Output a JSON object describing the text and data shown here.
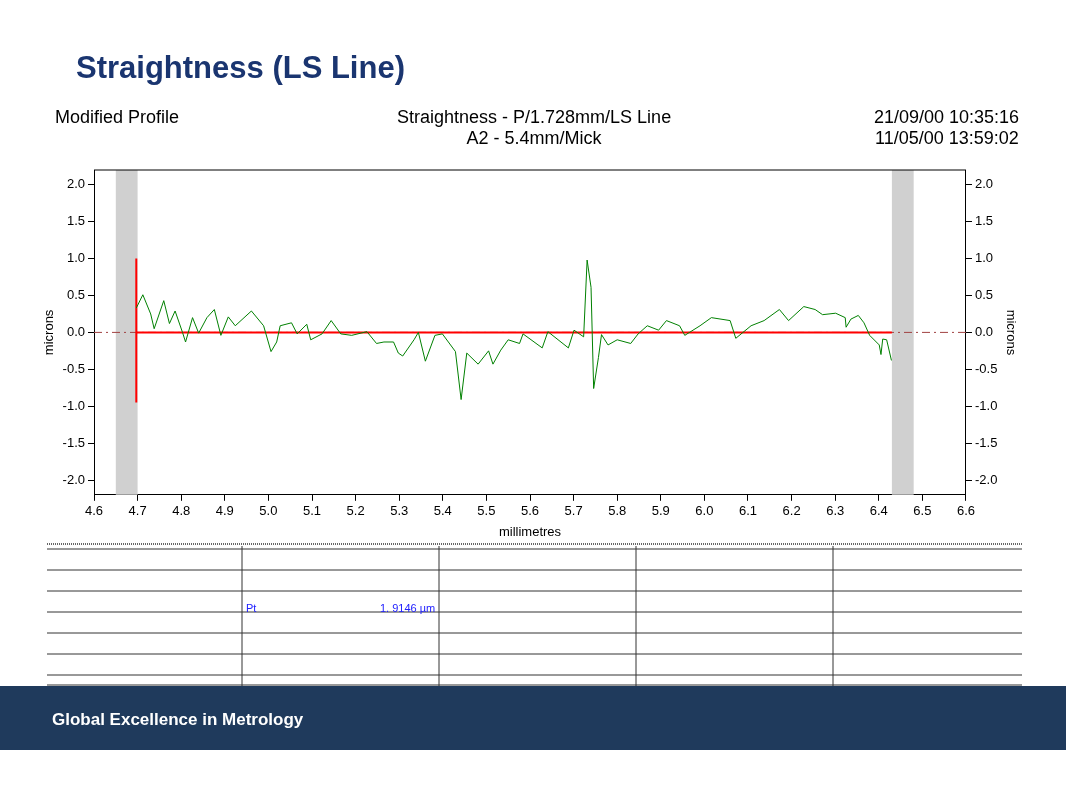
{
  "chart_data": {
    "type": "line",
    "title": "Straightness (LS Line)",
    "xlabel": "millimetres",
    "ylabel": "microns",
    "y2label": "microns",
    "annotations": [
      "Modified Profile",
      "Straightness - P/1.728mm/LS Line",
      "A2 - 5.4mm/Mick",
      "21/09/00 10:35:16",
      "11/05/00 13:59:02",
      "Pt",
      "1. 9146  µm",
      "Global Excellence in Metrology"
    ],
    "xlim": [
      4.6,
      6.6
    ],
    "xticks": [
      4.6,
      4.7,
      4.8,
      4.9,
      {
        "value": 5,
        "label": "5.0"
      },
      5.1,
      5.2,
      5.3,
      5.4,
      5.5,
      5.6,
      5.7,
      5.8,
      5.9,
      {
        "value": 6,
        "label": "6.0"
      },
      6.1,
      6.2,
      6.3,
      6.4,
      6.5,
      6.6
    ],
    "ylim": [
      -2.2,
      2.2
    ],
    "yticks": [
      {
        "value": -2,
        "label": "-2.0"
      },
      -1.5,
      {
        "value": -1,
        "label": "-1.0"
      },
      -0.5,
      {
        "value": 0,
        "label": "0.0"
      },
      0.5,
      {
        "value": 1,
        "label": "1.0"
      },
      1.5,
      {
        "value": 2,
        "label": "2.0"
      }
    ],
    "y2lim": [
      -2.2,
      2.2
    ],
    "y2ticks": [
      {
        "value": -2,
        "label": "-2.0"
      },
      -1.5,
      {
        "value": -1,
        "label": "-1.0"
      },
      -0.5,
      {
        "value": 0,
        "label": "0.0"
      },
      0.5,
      {
        "value": 1,
        "label": "1.0"
      },
      1.5,
      {
        "value": 2,
        "label": "2.0"
      }
    ],
    "grid": false,
    "legend": false,
    "marker": "none",
    "line_style": "solid",
    "ref_lines": [
      {
        "axis": "y",
        "value": 0,
        "color": "#a04040",
        "line_style": "dashed"
      }
    ],
    "bands": [
      {
        "axis": "x",
        "from": 4.65,
        "to": 4.7,
        "color": "#d0d0d0"
      },
      {
        "axis": "x",
        "from": 6.43,
        "to": 6.48,
        "color": "#d0d0d0"
      }
    ],
    "series": [
      {
        "color": "#008000",
        "x": [
          4.697,
          4.712,
          4.73,
          4.738,
          4.76,
          4.773,
          4.786,
          4.803,
          4.81,
          4.826,
          4.84,
          4.859,
          4.876,
          4.891,
          4.908,
          4.924,
          4.961,
          4.989,
          5.006,
          5.019,
          5.027,
          5.053,
          5.066,
          5.088,
          5.097,
          5.123,
          5.144,
          5.166,
          5.191,
          5.226,
          5.248,
          5.265,
          5.287,
          5.298,
          5.308,
          5.334,
          5.344,
          5.36,
          5.382,
          5.399,
          5.429,
          5.442,
          5.455,
          5.481,
          5.505,
          5.515,
          5.533,
          5.55,
          5.576,
          5.584,
          5.628,
          5.641,
          5.688,
          5.701,
          5.723,
          5.731,
          5.74,
          5.746,
          5.757,
          5.764,
          5.779,
          5.8,
          5.831,
          5.848,
          5.869,
          5.895,
          5.913,
          5.943,
          5.955,
          5.99,
          6.016,
          6.059,
          6.072,
          6.107,
          6.137,
          6.172,
          6.193,
          6.228,
          6.254,
          6.271,
          6.301,
          6.323,
          6.325,
          6.336,
          6.353,
          6.366,
          6.379,
          6.401,
          6.405,
          6.409,
          6.418,
          6.429
        ],
        "values": [
          0.33,
          0.51,
          0.25,
          0.05,
          0.43,
          0.12,
          0.29,
          0.0,
          -0.13,
          0.2,
          -0.01,
          0.2,
          0.31,
          -0.04,
          0.21,
          0.09,
          0.29,
          0.09,
          -0.26,
          -0.13,
          0.09,
          0.13,
          -0.02,
          0.11,
          -0.1,
          -0.02,
          0.16,
          -0.02,
          -0.04,
          0.01,
          -0.15,
          -0.13,
          -0.13,
          -0.28,
          -0.32,
          -0.1,
          0.0,
          -0.39,
          -0.04,
          -0.02,
          -0.26,
          -0.91,
          -0.28,
          -0.43,
          -0.25,
          -0.43,
          -0.24,
          -0.1,
          -0.15,
          -0.02,
          -0.21,
          0.01,
          -0.21,
          0.03,
          -0.06,
          0.98,
          0.61,
          -0.76,
          -0.34,
          -0.03,
          -0.17,
          -0.1,
          -0.15,
          -0.02,
          0.09,
          0.03,
          0.16,
          0.09,
          -0.04,
          0.09,
          0.2,
          0.16,
          -0.08,
          0.09,
          0.16,
          0.31,
          0.16,
          0.35,
          0.31,
          0.24,
          0.26,
          0.2,
          0.07,
          0.18,
          0.23,
          0.13,
          -0.04,
          -0.17,
          -0.3,
          -0.09,
          -0.1,
          -0.38
        ]
      },
      {
        "color": "#ff0000",
        "x": [
          4.697,
          6.43
        ],
        "values": [
          0,
          0
        ]
      },
      {
        "color": "#ff0000",
        "x": [
          4.697,
          4.697
        ],
        "values": [
          -0.95,
          1.0
        ]
      }
    ]
  }
}
